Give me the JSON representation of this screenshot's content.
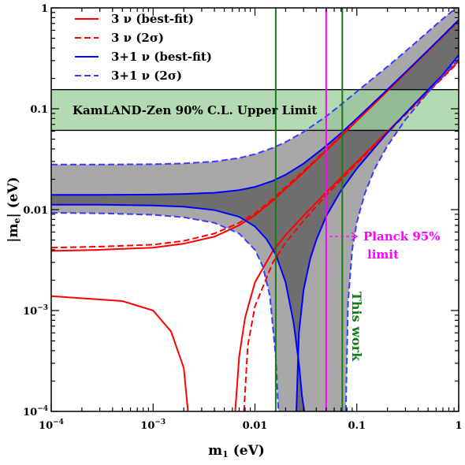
{
  "chart_data": {
    "type": "line",
    "xscale": "log",
    "yscale": "log",
    "xlim": [
      0.0001,
      1
    ],
    "ylim": [
      0.0001,
      1
    ],
    "xlabel": "m1 (eV)",
    "ylabel": "|me| (eV)",
    "x_ticks": [
      "10^-4",
      "10^-3",
      "0.01",
      "0.1",
      "1"
    ],
    "y_ticks": [
      "10^-4",
      "10^-3",
      "0.01",
      "0.1",
      "1"
    ],
    "grid": false,
    "legend_position": "top-left",
    "legend": [
      {
        "label": "3 ν (best-fit)",
        "color": "#ff0000",
        "style": "solid"
      },
      {
        "label": "3 ν (2σ)",
        "color": "#ff0000",
        "style": "dashed"
      },
      {
        "label": "3+1 ν (best-fit)",
        "color": "#0000ff",
        "style": "solid"
      },
      {
        "label": "3+1 ν (2σ)",
        "color": "#3a3aff",
        "style": "dashed"
      }
    ],
    "kamland_band": {
      "label": "KamLAND-Zen 90% C.L. Upper Limit",
      "y_low": 0.061,
      "y_high": 0.155,
      "color": "#9ed09e"
    },
    "planck_line": {
      "x": 0.05,
      "label_line1": "Planck 95%",
      "label_line2": "limit",
      "color": "#ff00ff"
    },
    "this_work_lines": {
      "x": [
        0.016,
        0.072
      ],
      "label": "This work",
      "color": "#1a7a1a"
    },
    "series": [
      {
        "name": "3 ν (best-fit)",
        "group": "NO-upper",
        "x": [
          0.0001,
          0.0003,
          0.001,
          0.002,
          0.004,
          0.007,
          0.01,
          0.015,
          0.02,
          0.03,
          0.05,
          0.07,
          0.1,
          0.2,
          0.3,
          0.5,
          0.7,
          1
        ],
        "y": [
          0.0039,
          0.004,
          0.0042,
          0.0046,
          0.0054,
          0.007,
          0.0088,
          0.0123,
          0.0161,
          0.0234,
          0.0384,
          0.0533,
          0.0759,
          0.15,
          0.225,
          0.374,
          0.523,
          0.747
        ]
      },
      {
        "name": "3 ν (best-fit)",
        "group": "NO-lower",
        "x": [
          0.0001,
          0.0005,
          0.001,
          0.0015,
          0.002,
          0.0022
        ],
        "y": [
          0.00139,
          0.00124,
          0.001,
          0.00062,
          0.00027,
          0.0001
        ]
      },
      {
        "name": "3 ν (best-fit)",
        "group": "NO-lower-right",
        "x": [
          0.0064,
          0.007,
          0.008,
          0.01,
          0.015,
          0.02,
          0.03,
          0.05,
          0.07,
          0.1,
          0.2,
          0.3,
          0.5,
          0.7,
          1
        ],
        "y": [
          0.0001,
          0.00035,
          0.00085,
          0.0019,
          0.0039,
          0.0056,
          0.0087,
          0.0148,
          0.0208,
          0.0298,
          0.0595,
          0.0893,
          0.149,
          0.208,
          0.298
        ]
      },
      {
        "name": "3 ν (2σ)",
        "group": "NO-upper",
        "x": [
          0.0001,
          0.0003,
          0.001,
          0.002,
          0.004,
          0.007,
          0.01,
          0.015,
          0.02,
          0.03,
          0.05,
          0.07,
          0.1,
          0.2,
          0.3,
          0.5,
          0.7,
          1
        ],
        "y": [
          0.0042,
          0.0043,
          0.0045,
          0.0049,
          0.0058,
          0.0074,
          0.0092,
          0.0128,
          0.0167,
          0.0241,
          0.0392,
          0.0542,
          0.077,
          0.152,
          0.228,
          0.38,
          0.531,
          0.76
        ]
      },
      {
        "name": "3 ν (2σ)",
        "group": "NO-lower-right",
        "x": [
          0.0078,
          0.0085,
          0.01,
          0.015,
          0.02,
          0.03,
          0.05,
          0.07,
          0.1,
          0.2,
          0.3,
          0.5,
          0.7,
          1
        ],
        "y": [
          0.0001,
          0.00045,
          0.0011,
          0.003,
          0.0047,
          0.0078,
          0.0139,
          0.0198,
          0.0287,
          0.058,
          0.0872,
          0.146,
          0.204,
          0.292
        ]
      },
      {
        "name": "3+1 ν (best-fit)",
        "group": "upper",
        "x": [
          0.0001,
          0.0003,
          0.001,
          0.002,
          0.004,
          0.007,
          0.01,
          0.015,
          0.02,
          0.03,
          0.05,
          0.07,
          0.1,
          0.2,
          0.3,
          0.5,
          0.7,
          1
        ],
        "y": [
          0.014,
          0.014,
          0.0141,
          0.0143,
          0.0147,
          0.0156,
          0.0168,
          0.0193,
          0.0222,
          0.0286,
          0.0428,
          0.0574,
          0.08,
          0.155,
          0.23,
          0.38,
          0.53,
          0.76
        ]
      },
      {
        "name": "3+1 ν (best-fit)",
        "group": "lower",
        "x": [
          0.0001,
          0.0003,
          0.001,
          0.002,
          0.004,
          0.007,
          0.01,
          0.013,
          0.016,
          0.02,
          0.024,
          0.027,
          0.029,
          0.0305
        ],
        "y": [
          0.0112,
          0.0112,
          0.011,
          0.0107,
          0.0099,
          0.0085,
          0.0068,
          0.0051,
          0.0036,
          0.0019,
          0.00075,
          0.0003,
          0.00014,
          0.0001
        ]
      },
      {
        "name": "3+1 ν (best-fit)",
        "group": "lower-right",
        "x": [
          0.0255,
          0.027,
          0.03,
          0.035,
          0.04,
          0.05,
          0.07,
          0.1,
          0.2,
          0.3,
          0.5,
          0.7,
          1
        ],
        "y": [
          0.0001,
          0.0006,
          0.0016,
          0.0033,
          0.005,
          0.0086,
          0.0155,
          0.0255,
          0.058,
          0.09,
          0.154,
          0.218,
          0.34
        ]
      },
      {
        "name": "3+1 ν (2σ)",
        "group": "upper",
        "x": [
          0.0001,
          0.0003,
          0.001,
          0.002,
          0.004,
          0.007,
          0.01,
          0.015,
          0.02,
          0.03,
          0.05,
          0.07,
          0.1,
          0.2,
          0.3,
          0.5,
          0.7,
          1
        ],
        "y": [
          0.028,
          0.028,
          0.0282,
          0.0287,
          0.03,
          0.0325,
          0.0355,
          0.041,
          0.0468,
          0.059,
          0.084,
          0.11,
          0.148,
          0.262,
          0.37,
          0.58,
          0.78,
          1.05
        ]
      },
      {
        "name": "3+1 ν (2σ)",
        "group": "lower-left",
        "x": [
          0.0001,
          0.0003,
          0.001,
          0.002,
          0.004,
          0.007,
          0.01,
          0.012,
          0.014,
          0.016,
          0.017
        ],
        "y": [
          0.0093,
          0.0092,
          0.0089,
          0.0084,
          0.0074,
          0.0058,
          0.004,
          0.0027,
          0.0014,
          0.00035,
          0.0001
        ]
      },
      {
        "name": "3+1 ν (2σ)",
        "group": "lower-right",
        "x": [
          0.078,
          0.082,
          0.09,
          0.1,
          0.12,
          0.15,
          0.2,
          0.3,
          0.5,
          0.7,
          1
        ],
        "y": [
          0.0001,
          0.0012,
          0.004,
          0.0075,
          0.0145,
          0.0255,
          0.043,
          0.078,
          0.145,
          0.212,
          0.31
        ]
      }
    ]
  }
}
